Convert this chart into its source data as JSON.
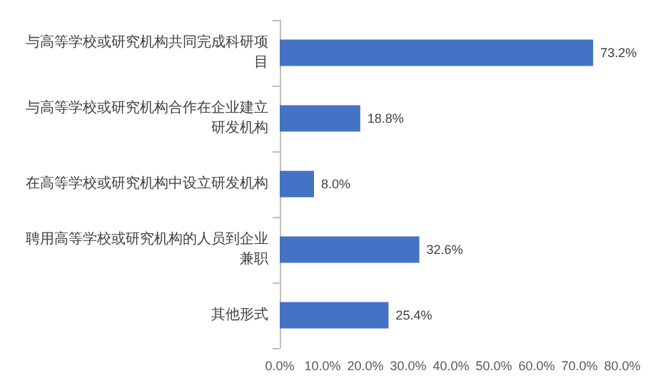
{
  "chart_data": {
    "type": "bar",
    "orientation": "horizontal",
    "categories": [
      "与高等学校或研究机构共同完成科研项目",
      "与高等学校或研究机构合作在企业建立研发机构",
      "在高等学校或研究机构中设立研发机构",
      "聘用高等学校或研究机构的人员到企业兼职",
      "其他形式"
    ],
    "values": [
      73.2,
      18.8,
      8.0,
      32.6,
      25.4
    ],
    "value_labels": [
      "73.2%",
      "18.8%",
      "8.0%",
      "32.6%",
      "25.4%"
    ],
    "color": "#4472c4",
    "xlim": [
      0,
      80
    ],
    "xticks": [
      {
        "value": 0,
        "label": "0.0%"
      },
      {
        "value": 10,
        "label": "10.0%"
      },
      {
        "value": 20,
        "label": "20.0%"
      },
      {
        "value": 30,
        "label": "30.0%"
      },
      {
        "value": 40,
        "label": "40.0%"
      },
      {
        "value": 50,
        "label": "50.0%"
      },
      {
        "value": 60,
        "label": "60.0%"
      },
      {
        "value": 70,
        "label": "70.0%"
      },
      {
        "value": 80,
        "label": "80.0%"
      }
    ],
    "grid": false
  }
}
